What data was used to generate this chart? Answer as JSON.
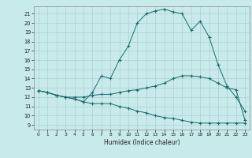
{
  "title": "",
  "xlabel": "Humidex (Indice chaleur)",
  "bg_color": "#c8eaea",
  "grid_color": "#afd4d4",
  "line_color": "#1a6b6b",
  "xlim": [
    -0.5,
    23.5
  ],
  "ylim": [
    8.5,
    21.8
  ],
  "yticks": [
    9,
    10,
    11,
    12,
    13,
    14,
    15,
    16,
    17,
    18,
    19,
    20,
    21
  ],
  "xticks": [
    0,
    1,
    2,
    3,
    4,
    5,
    6,
    7,
    8,
    9,
    10,
    11,
    12,
    13,
    14,
    15,
    16,
    17,
    18,
    19,
    20,
    21,
    22,
    23
  ],
  "hours": [
    0,
    1,
    2,
    3,
    4,
    5,
    6,
    7,
    8,
    9,
    10,
    11,
    12,
    13,
    14,
    15,
    16,
    17,
    18,
    19,
    20,
    21,
    22,
    23
  ],
  "curve_max": [
    12.7,
    12.5,
    12.2,
    12.0,
    11.8,
    11.5,
    12.5,
    14.3,
    14.0,
    16.0,
    17.5,
    20.0,
    21.0,
    21.3,
    21.5,
    21.2,
    21.0,
    19.2,
    20.2,
    18.5,
    15.5,
    13.2,
    12.0,
    10.5
  ],
  "curve_mean": [
    12.7,
    12.5,
    12.2,
    12.0,
    12.0,
    12.0,
    12.2,
    12.3,
    12.3,
    12.5,
    12.7,
    12.8,
    13.0,
    13.2,
    13.5,
    14.0,
    14.3,
    14.3,
    14.2,
    14.0,
    13.5,
    13.0,
    12.8,
    9.5
  ],
  "curve_min": [
    12.7,
    12.5,
    12.2,
    12.0,
    11.8,
    11.5,
    11.3,
    11.3,
    11.3,
    11.0,
    10.8,
    10.5,
    10.3,
    10.0,
    9.8,
    9.7,
    9.5,
    9.3,
    9.2,
    9.2,
    9.2,
    9.2,
    9.2,
    9.2
  ]
}
